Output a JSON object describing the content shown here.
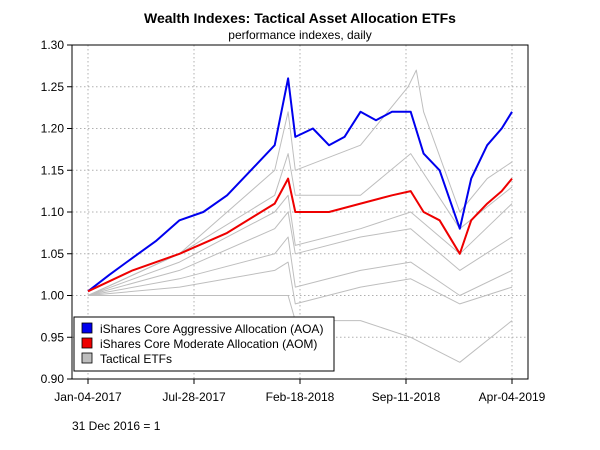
{
  "chart_data": {
    "type": "line",
    "title": "Wealth Indexes: Tactical Asset Allocation ETFs",
    "subtitle": "performance indexes, daily",
    "note": "31 Dec 2016 = 1",
    "x_ticks": [
      "Jan-04-2017",
      "Jul-28-2017",
      "Feb-18-2018",
      "Sep-11-2018",
      "Apr-04-2019"
    ],
    "x_range": [
      "2017-01-04",
      "2019-04-04"
    ],
    "y_ticks": [
      "0.90",
      "0.95",
      "1.00",
      "1.05",
      "1.10",
      "1.15",
      "1.20",
      "1.25",
      "1.30"
    ],
    "ylim": [
      0.9,
      1.3
    ],
    "grid": true,
    "legend_position": "bottom-left",
    "legend": [
      {
        "label": "iShares Core Aggressive Allocation (AOA)",
        "color": "#0000ee"
      },
      {
        "label": "iShares Core Moderate Allocation (AOM)",
        "color": "#ee0000"
      },
      {
        "label": "Tactical ETFs",
        "color": "#bebebe"
      }
    ],
    "series": [
      {
        "name": "iShares Core Aggressive Allocation (AOA)",
        "color": "#0000ee",
        "emphasis": true,
        "points": [
          [
            "2017-01-04",
            1.005
          ],
          [
            "2017-02-15",
            1.025
          ],
          [
            "2017-03-31",
            1.045
          ],
          [
            "2017-05-15",
            1.065
          ],
          [
            "2017-06-30",
            1.09
          ],
          [
            "2017-08-15",
            1.1
          ],
          [
            "2017-09-30",
            1.12
          ],
          [
            "2017-11-15",
            1.15
          ],
          [
            "2017-12-31",
            1.18
          ],
          [
            "2018-01-26",
            1.26
          ],
          [
            "2018-02-09",
            1.19
          ],
          [
            "2018-03-15",
            1.2
          ],
          [
            "2018-04-15",
            1.18
          ],
          [
            "2018-05-15",
            1.19
          ],
          [
            "2018-06-15",
            1.22
          ],
          [
            "2018-07-15",
            1.21
          ],
          [
            "2018-08-15",
            1.22
          ],
          [
            "2018-09-20",
            1.22
          ],
          [
            "2018-10-15",
            1.17
          ],
          [
            "2018-11-15",
            1.15
          ],
          [
            "2018-12-24",
            1.08
          ],
          [
            "2019-01-15",
            1.14
          ],
          [
            "2019-02-15",
            1.18
          ],
          [
            "2019-03-15",
            1.2
          ],
          [
            "2019-04-04",
            1.22
          ]
        ]
      },
      {
        "name": "iShares Core Moderate Allocation (AOM)",
        "color": "#ee0000",
        "emphasis": true,
        "points": [
          [
            "2017-01-04",
            1.005
          ],
          [
            "2017-03-31",
            1.03
          ],
          [
            "2017-06-30",
            1.05
          ],
          [
            "2017-09-30",
            1.075
          ],
          [
            "2017-12-31",
            1.11
          ],
          [
            "2018-01-26",
            1.14
          ],
          [
            "2018-02-09",
            1.1
          ],
          [
            "2018-04-15",
            1.1
          ],
          [
            "2018-06-15",
            1.11
          ],
          [
            "2018-08-15",
            1.12
          ],
          [
            "2018-09-20",
            1.125
          ],
          [
            "2018-10-15",
            1.1
          ],
          [
            "2018-11-15",
            1.09
          ],
          [
            "2018-12-24",
            1.05
          ],
          [
            "2019-01-15",
            1.09
          ],
          [
            "2019-02-15",
            1.11
          ],
          [
            "2019-03-15",
            1.125
          ],
          [
            "2019-04-04",
            1.14
          ]
        ]
      },
      {
        "name": "Tactical ETFs",
        "color": "#bebebe",
        "points": [
          [
            "2017-01-04",
            1.0
          ],
          [
            "2017-06-30",
            1.05
          ],
          [
            "2017-12-31",
            1.15
          ],
          [
            "2018-01-26",
            1.22
          ],
          [
            "2018-02-09",
            1.15
          ],
          [
            "2018-06-15",
            1.18
          ],
          [
            "2018-09-15",
            1.25
          ],
          [
            "2018-10-01",
            1.27
          ],
          [
            "2018-10-15",
            1.22
          ],
          [
            "2018-12-24",
            1.1
          ],
          [
            "2019-02-15",
            1.14
          ],
          [
            "2019-04-04",
            1.16
          ]
        ]
      },
      {
        "name": "Tactical ETFs",
        "color": "#bebebe",
        "points": [
          [
            "2017-01-04",
            1.0
          ],
          [
            "2017-06-30",
            1.05
          ],
          [
            "2017-12-31",
            1.12
          ],
          [
            "2018-01-26",
            1.17
          ],
          [
            "2018-02-09",
            1.12
          ],
          [
            "2018-06-15",
            1.12
          ],
          [
            "2018-09-20",
            1.17
          ],
          [
            "2018-12-24",
            1.08
          ],
          [
            "2019-04-04",
            1.13
          ]
        ]
      },
      {
        "name": "Tactical ETFs",
        "color": "#bebebe",
        "points": [
          [
            "2017-01-04",
            1.0
          ],
          [
            "2017-06-30",
            1.04
          ],
          [
            "2017-12-31",
            1.1
          ],
          [
            "2018-01-26",
            1.12
          ],
          [
            "2018-02-09",
            1.06
          ],
          [
            "2018-06-15",
            1.08
          ],
          [
            "2018-09-20",
            1.1
          ],
          [
            "2018-12-24",
            1.05
          ],
          [
            "2019-04-04",
            1.11
          ]
        ]
      },
      {
        "name": "Tactical ETFs",
        "color": "#bebebe",
        "points": [
          [
            "2017-01-04",
            1.0
          ],
          [
            "2017-06-30",
            1.03
          ],
          [
            "2017-12-31",
            1.08
          ],
          [
            "2018-01-26",
            1.1
          ],
          [
            "2018-02-09",
            1.05
          ],
          [
            "2018-06-15",
            1.07
          ],
          [
            "2018-09-20",
            1.08
          ],
          [
            "2018-12-24",
            1.03
          ],
          [
            "2019-04-04",
            1.07
          ]
        ]
      },
      {
        "name": "Tactical ETFs",
        "color": "#bebebe",
        "points": [
          [
            "2017-01-04",
            1.0
          ],
          [
            "2017-06-30",
            1.02
          ],
          [
            "2017-12-31",
            1.05
          ],
          [
            "2018-01-26",
            1.07
          ],
          [
            "2018-02-09",
            1.01
          ],
          [
            "2018-06-15",
            1.03
          ],
          [
            "2018-09-20",
            1.04
          ],
          [
            "2018-12-24",
            1.0
          ],
          [
            "2019-04-04",
            1.03
          ]
        ]
      },
      {
        "name": "Tactical ETFs",
        "color": "#bebebe",
        "points": [
          [
            "2017-01-04",
            1.0
          ],
          [
            "2017-06-30",
            1.01
          ],
          [
            "2017-12-31",
            1.03
          ],
          [
            "2018-01-26",
            1.04
          ],
          [
            "2018-02-09",
            0.99
          ],
          [
            "2018-06-15",
            1.01
          ],
          [
            "2018-09-20",
            1.02
          ],
          [
            "2018-12-24",
            0.99
          ],
          [
            "2019-04-04",
            1.01
          ]
        ]
      },
      {
        "name": "Tactical ETFs",
        "color": "#bebebe",
        "points": [
          [
            "2017-01-04",
            1.0
          ],
          [
            "2017-06-30",
            1.0
          ],
          [
            "2017-12-31",
            1.0
          ],
          [
            "2018-01-26",
            1.0
          ],
          [
            "2018-02-09",
            0.97
          ],
          [
            "2018-06-15",
            0.97
          ],
          [
            "2018-09-20",
            0.95
          ],
          [
            "2018-12-24",
            0.92
          ],
          [
            "2019-04-04",
            0.97
          ]
        ]
      }
    ]
  }
}
